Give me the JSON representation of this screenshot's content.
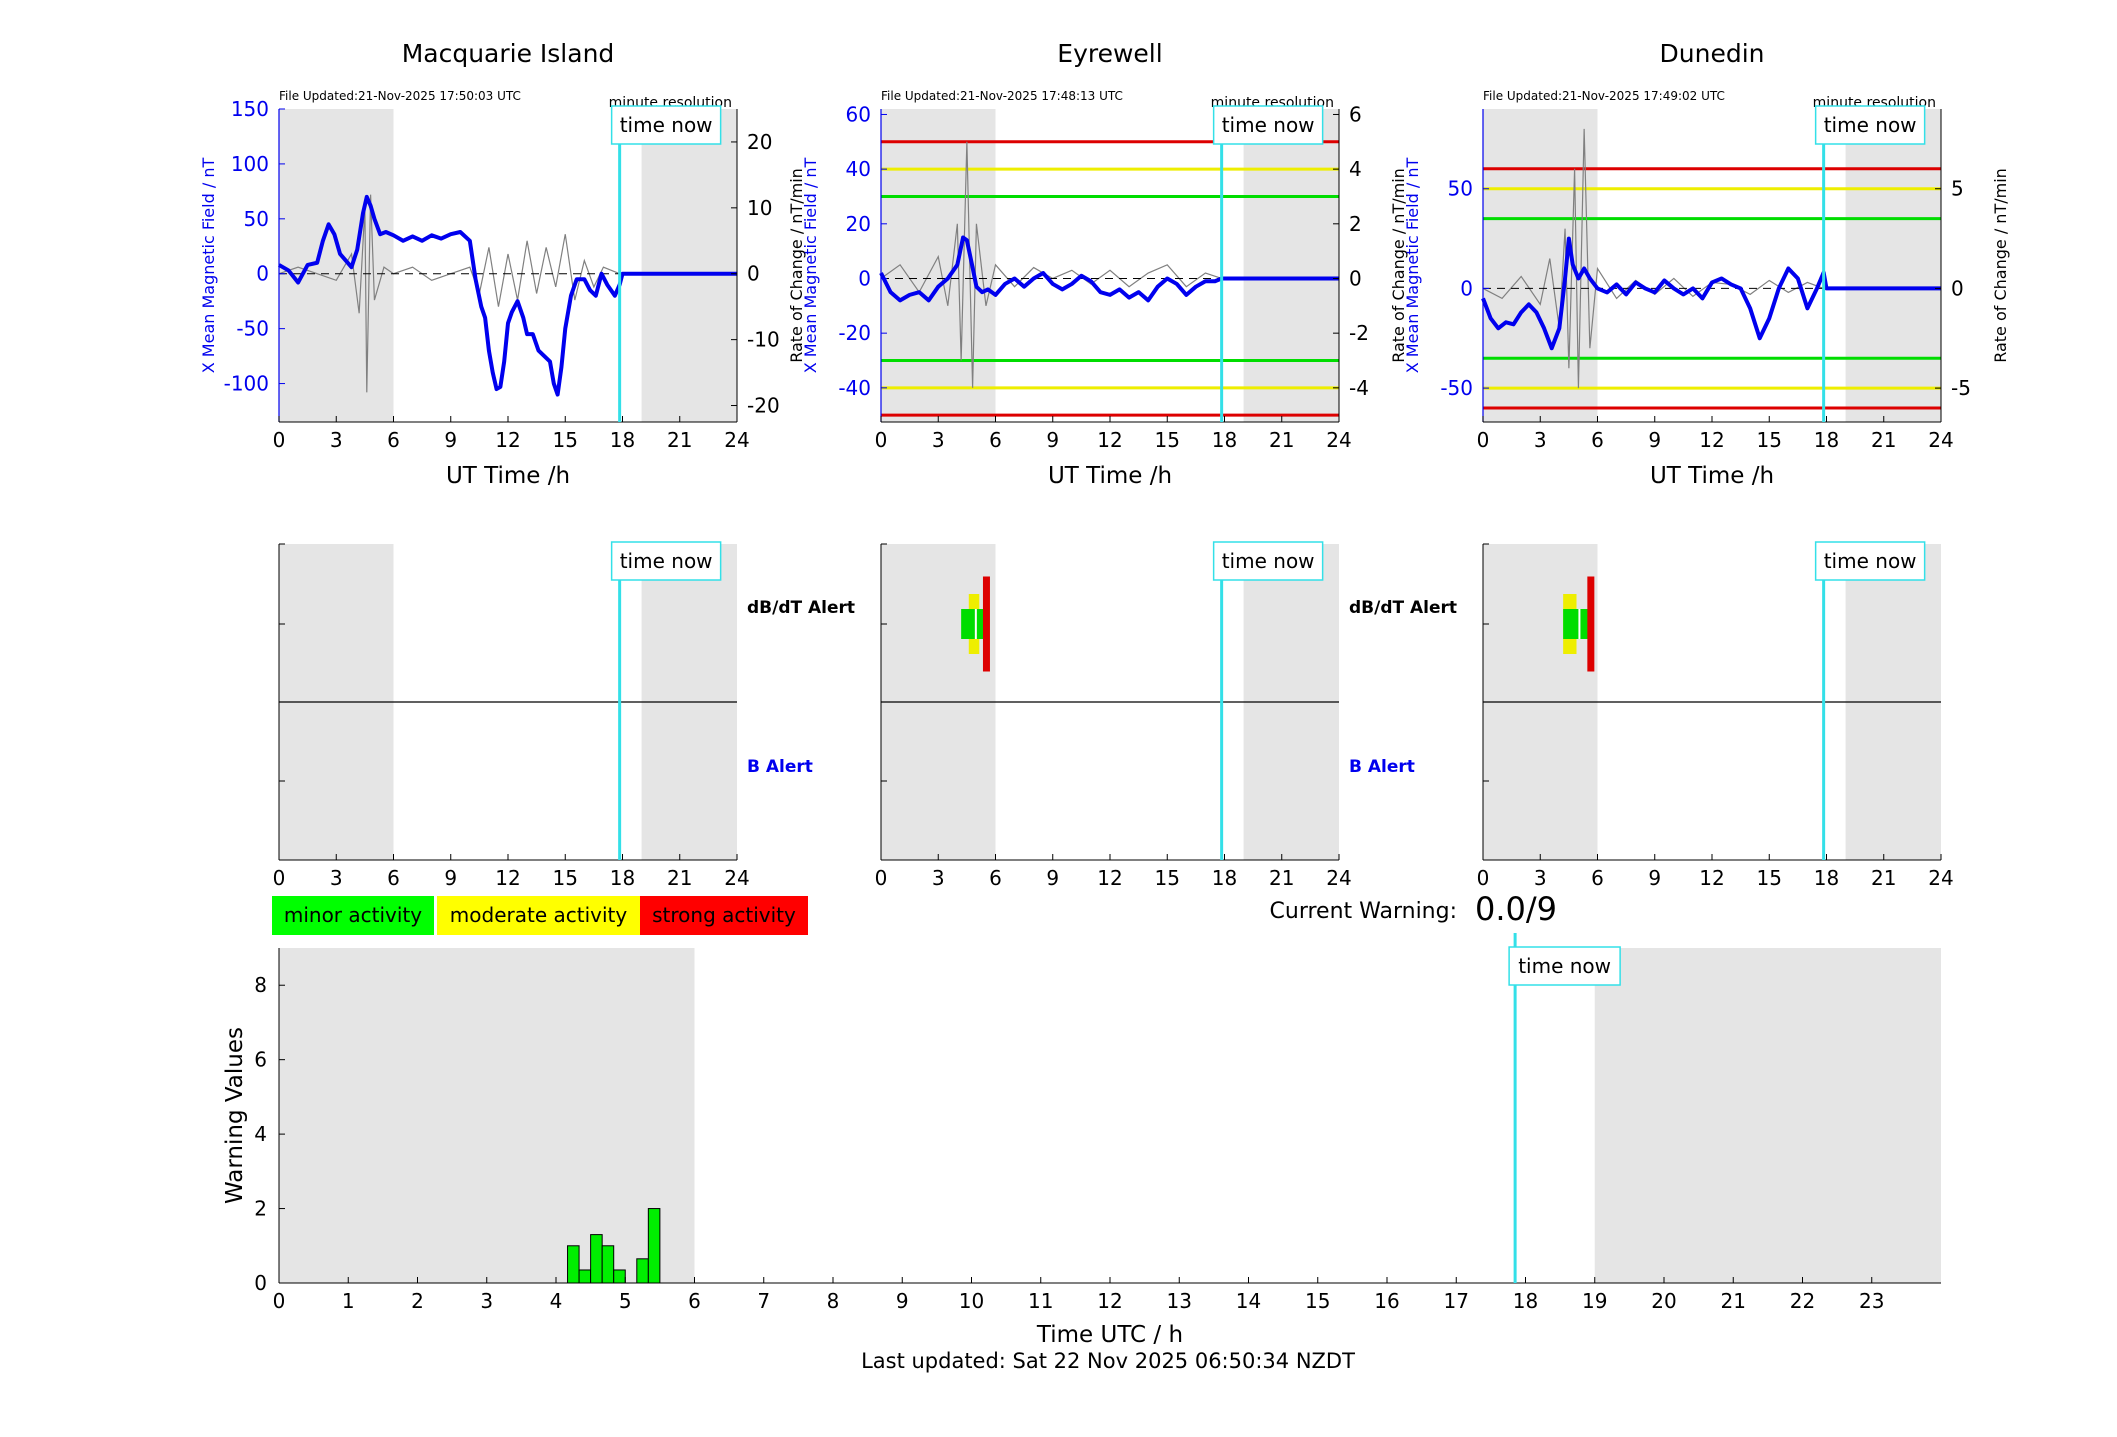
{
  "page": {
    "current_warning_label": "Current Warning:",
    "current_warning_value": "0.0/9",
    "last_updated": "Last updated: Sat 22 Nov 2025 06:50:34 NZDT",
    "legend": [
      {
        "label": "minor activity",
        "color": "#00ff00"
      },
      {
        "label": "moderate activity",
        "color": "#ffff00"
      },
      {
        "label": "strong activity",
        "color": "#ff0000"
      }
    ],
    "time_now_label": "time now",
    "minute_resolution_label": "minute resolution",
    "colors": {
      "mean_field": "#0000ee",
      "rate_of_change": "#808080",
      "time_now": "#33e0e8",
      "night_shade": "#e5e5e5",
      "threshold_minor": "#00dd00",
      "threshold_moderate": "#eeee00",
      "threshold_strong": "#dd0000"
    }
  },
  "chart_data": [
    {
      "type": "line",
      "station": "Macquarie Island",
      "title": "Macquarie Island",
      "file_updated": "File Updated:21-Nov-2025 17:50:03 UTC",
      "xlabel": "UT Time /h",
      "ylabel_left": "X Mean Magnetic Field / nT",
      "ylabel_right": "Rate of Change / nT/min",
      "xlim": [
        0,
        24
      ],
      "ylim_left": [
        -135,
        150
      ],
      "ylim_right": [
        -22.5,
        25
      ],
      "xticks": [
        0,
        3,
        6,
        9,
        12,
        15,
        18,
        21,
        24
      ],
      "yticks_left": [
        -100,
        -50,
        0,
        50,
        100,
        150
      ],
      "yticks_right": [
        -20,
        -10,
        0,
        10,
        20
      ],
      "time_now": 17.85,
      "night_shading": [
        [
          0,
          6
        ],
        [
          19,
          24
        ]
      ],
      "thresholds_left": [],
      "series": [
        {
          "name": "X Mean Magnetic Field",
          "axis": "left",
          "x": [
            0,
            0.5,
            1,
            1.5,
            2,
            2.3,
            2.6,
            2.9,
            3.2,
            3.5,
            3.8,
            4.1,
            4.4,
            4.6,
            4.8,
            5,
            5.3,
            5.6,
            6,
            6.5,
            7,
            7.5,
            8,
            8.5,
            9,
            9.5,
            10,
            10.3,
            10.6,
            10.8,
            11,
            11.2,
            11.4,
            11.6,
            11.8,
            12,
            12.2,
            12.5,
            12.8,
            13,
            13.3,
            13.6,
            13.9,
            14.2,
            14.4,
            14.6,
            14.8,
            15,
            15.3,
            15.6,
            16,
            16.3,
            16.6,
            16.9,
            17.2,
            17.6,
            17.85,
            18,
            21,
            24
          ],
          "values": [
            8,
            3,
            -8,
            8,
            10,
            30,
            45,
            36,
            18,
            12,
            6,
            22,
            55,
            70,
            62,
            50,
            36,
            38,
            35,
            30,
            34,
            30,
            35,
            32,
            36,
            38,
            30,
            -5,
            -30,
            -40,
            -70,
            -90,
            -105,
            -103,
            -80,
            -45,
            -35,
            -25,
            -40,
            -55,
            -55,
            -70,
            -75,
            -80,
            -100,
            -110,
            -85,
            -50,
            -20,
            -5,
            -5,
            -15,
            -20,
            0,
            -10,
            -20,
            -10,
            0,
            0,
            0
          ]
        },
        {
          "name": "Rate of Change",
          "axis": "right",
          "x": [
            0,
            1,
            2,
            3,
            3.8,
            4.2,
            4.5,
            4.6,
            4.8,
            5,
            5.5,
            6,
            7,
            8,
            9,
            10,
            10.5,
            11,
            11.5,
            12,
            12.5,
            13,
            13.5,
            14,
            14.5,
            15,
            15.5,
            16,
            16.5,
            17,
            17.85
          ],
          "values": [
            0,
            1,
            0,
            -1,
            3,
            -6,
            10,
            -18,
            12,
            -4,
            1,
            0,
            1,
            -1,
            0,
            1,
            -3,
            4,
            -5,
            3,
            -4,
            5,
            -3,
            4,
            -2,
            6,
            -4,
            2,
            -2,
            1,
            0
          ]
        }
      ]
    },
    {
      "type": "line",
      "station": "Eyrewell",
      "title": "Eyrewell",
      "file_updated": "File Updated:21-Nov-2025 17:48:13 UTC",
      "xlabel": "UT Time /h",
      "ylabel_left": "X Mean Magnetic Field / nT",
      "ylabel_right": "Rate of Change / nT/min",
      "xlim": [
        0,
        24
      ],
      "ylim_left": [
        -52.5,
        62
      ],
      "ylim_right": [
        -5.25,
        6.2
      ],
      "xticks": [
        0,
        3,
        6,
        9,
        12,
        15,
        18,
        21,
        24
      ],
      "yticks_left": [
        -40,
        -20,
        0,
        20,
        40,
        60
      ],
      "yticks_right": [
        -4,
        -2,
        0,
        2,
        4,
        6
      ],
      "time_now": 17.85,
      "night_shading": [
        [
          0,
          6
        ],
        [
          19,
          24
        ]
      ],
      "thresholds_left": [
        {
          "value": 50,
          "level": "strong"
        },
        {
          "value": 40,
          "level": "moderate"
        },
        {
          "value": 30,
          "level": "minor"
        },
        {
          "value": -30,
          "level": "minor"
        },
        {
          "value": -40,
          "level": "moderate"
        },
        {
          "value": -50,
          "level": "strong"
        }
      ],
      "series": [
        {
          "name": "X Mean Magnetic Field",
          "axis": "left",
          "x": [
            0,
            0.5,
            1,
            1.5,
            2,
            2.5,
            3,
            3.5,
            4,
            4.3,
            4.5,
            4.8,
            5,
            5.3,
            5.6,
            6,
            6.5,
            7,
            7.5,
            8,
            8.5,
            9,
            9.5,
            10,
            10.5,
            11,
            11.5,
            12,
            12.5,
            13,
            13.5,
            14,
            14.5,
            15,
            15.5,
            16,
            16.5,
            17,
            17.5,
            17.85,
            18,
            21,
            24
          ],
          "values": [
            2,
            -5,
            -8,
            -6,
            -5,
            -8,
            -3,
            0,
            5,
            15,
            14,
            4,
            -3,
            -5,
            -4,
            -6,
            -2,
            0,
            -3,
            0,
            2,
            -2,
            -4,
            -2,
            1,
            -1,
            -5,
            -6,
            -4,
            -7,
            -5,
            -8,
            -3,
            0,
            -2,
            -6,
            -3,
            -1,
            -1,
            0,
            0,
            0,
            0
          ]
        },
        {
          "name": "Rate of Change",
          "axis": "right",
          "x": [
            0,
            1,
            2,
            3,
            3.5,
            4,
            4.2,
            4.5,
            4.8,
            5,
            5.5,
            6,
            7,
            8,
            9,
            10,
            11,
            12,
            13,
            14,
            15,
            16,
            17,
            17.85
          ],
          "values": [
            0,
            0.5,
            -0.5,
            0.8,
            -1,
            2,
            -3,
            5,
            -4,
            2,
            -1,
            0.5,
            -0.3,
            0.4,
            0,
            0.3,
            -0.2,
            0.3,
            -0.3,
            0.2,
            0.5,
            -0.3,
            0.2,
            0
          ]
        }
      ]
    },
    {
      "type": "line",
      "station": "Dunedin",
      "title": "Dunedin",
      "file_updated": "File Updated:21-Nov-2025 17:49:02 UTC",
      "xlabel": "UT Time /h",
      "ylabel_left": "X Mean Magnetic Field / nT",
      "ylabel_right": "Rate of Change / nT/min",
      "xlim": [
        0,
        24
      ],
      "ylim_left": [
        -67,
        90
      ],
      "ylim_right": [
        -6.7,
        9
      ],
      "xticks": [
        0,
        3,
        6,
        9,
        12,
        15,
        18,
        21,
        24
      ],
      "yticks_left": [
        -50,
        0,
        50
      ],
      "yticks_right": [
        -5,
        0,
        5
      ],
      "time_now": 17.85,
      "night_shading": [
        [
          0,
          6
        ],
        [
          19,
          24
        ]
      ],
      "thresholds_left": [
        {
          "value": 60,
          "level": "strong"
        },
        {
          "value": 50,
          "level": "moderate"
        },
        {
          "value": 35,
          "level": "minor"
        },
        {
          "value": -35,
          "level": "minor"
        },
        {
          "value": -50,
          "level": "moderate"
        },
        {
          "value": -60,
          "level": "strong"
        }
      ],
      "series": [
        {
          "name": "X Mean Magnetic Field",
          "axis": "left",
          "x": [
            0,
            0.4,
            0.8,
            1.2,
            1.6,
            2,
            2.4,
            2.8,
            3.2,
            3.6,
            4,
            4.3,
            4.5,
            4.7,
            5,
            5.3,
            5.6,
            6,
            6.5,
            7,
            7.5,
            8,
            8.5,
            9,
            9.5,
            10,
            10.5,
            11,
            11.5,
            12,
            12.5,
            13,
            13.5,
            14,
            14.5,
            15,
            15.5,
            16,
            16.5,
            17,
            17.5,
            17.85,
            18,
            21,
            24
          ],
          "values": [
            -5,
            -15,
            -20,
            -17,
            -18,
            -12,
            -8,
            -12,
            -20,
            -30,
            -20,
            5,
            25,
            12,
            5,
            10,
            5,
            0,
            -2,
            2,
            -3,
            3,
            0,
            -2,
            4,
            0,
            -3,
            0,
            -5,
            3,
            5,
            2,
            0,
            -10,
            -25,
            -15,
            0,
            10,
            5,
            -10,
            0,
            8,
            0,
            0,
            0
          ]
        },
        {
          "name": "Rate of Change",
          "axis": "right",
          "x": [
            0,
            1,
            2,
            3,
            3.5,
            4,
            4.3,
            4.5,
            4.8,
            5,
            5.3,
            5.6,
            6,
            7,
            8,
            9,
            10,
            11,
            12,
            13,
            14,
            15,
            16,
            17,
            17.85
          ],
          "values": [
            0,
            -0.5,
            0.6,
            -0.8,
            1.5,
            -2,
            3,
            -4,
            6,
            -5,
            8,
            -3,
            1,
            -0.5,
            0.4,
            -0.3,
            0.5,
            -0.4,
            0.3,
            0.2,
            -0.3,
            0.4,
            -0.2,
            0.3,
            0
          ]
        }
      ]
    },
    {
      "type": "heatmap",
      "station": "Macquarie Island",
      "row_labels": [
        "dB/dT Alert",
        "B Alert"
      ],
      "xlim": [
        0,
        24
      ],
      "xticks": [
        0,
        3,
        6,
        9,
        12,
        15,
        18,
        21,
        24
      ],
      "time_now": 17.85,
      "night_shading": [
        [
          0,
          6
        ],
        [
          19,
          24
        ]
      ],
      "alerts": []
    },
    {
      "type": "heatmap",
      "station": "Eyrewell",
      "row_labels": [
        "dB/dT Alert",
        "B Alert"
      ],
      "xlim": [
        0,
        24
      ],
      "xticks": [
        0,
        3,
        6,
        9,
        12,
        15,
        18,
        21,
        24
      ],
      "time_now": 17.85,
      "night_shading": [
        [
          0,
          6
        ],
        [
          19,
          24
        ]
      ],
      "alerts": [
        {
          "row": "dB/dT Alert",
          "start": 4.6,
          "end": 5.15,
          "level": "moderate"
        },
        {
          "row": "dB/dT Alert",
          "start": 4.2,
          "end": 5.6,
          "level": "minor"
        },
        {
          "row": "dB/dT Alert",
          "start": 5.35,
          "end": 5.65,
          "level": "strong"
        }
      ]
    },
    {
      "type": "heatmap",
      "station": "Dunedin",
      "row_labels": [
        "dB/dT Alert",
        "B Alert"
      ],
      "xlim": [
        0,
        24
      ],
      "xticks": [
        0,
        3,
        6,
        9,
        12,
        15,
        18,
        21,
        24
      ],
      "time_now": 17.85,
      "night_shading": [
        [
          0,
          6
        ],
        [
          19,
          24
        ]
      ],
      "alerts": [
        {
          "row": "dB/dT Alert",
          "start": 4.2,
          "end": 4.9,
          "level": "moderate"
        },
        {
          "row": "dB/dT Alert",
          "start": 4.2,
          "end": 5.75,
          "level": "minor"
        },
        {
          "row": "dB/dT Alert",
          "start": 5.5,
          "end": 5.75,
          "level": "strong"
        }
      ]
    },
    {
      "type": "bar",
      "title": "",
      "xlabel": "Time UTC / h",
      "ylabel": "Warning Values",
      "xlim": [
        0,
        24
      ],
      "ylim": [
        0,
        9
      ],
      "xticks": [
        0,
        1,
        2,
        3,
        4,
        5,
        6,
        7,
        8,
        9,
        10,
        11,
        12,
        13,
        14,
        15,
        16,
        17,
        18,
        19,
        20,
        21,
        22,
        23
      ],
      "yticks": [
        0,
        2,
        4,
        6,
        8
      ],
      "time_now": 17.85,
      "night_shading": [
        [
          0,
          6
        ],
        [
          19,
          24
        ]
      ],
      "bar_width": 0.16667,
      "x": [
        4.25,
        4.4167,
        4.5833,
        4.75,
        4.9167,
        5.25,
        5.4167
      ],
      "values": [
        1,
        0.35,
        1.3,
        1,
        0.35,
        0.65,
        2
      ]
    }
  ]
}
